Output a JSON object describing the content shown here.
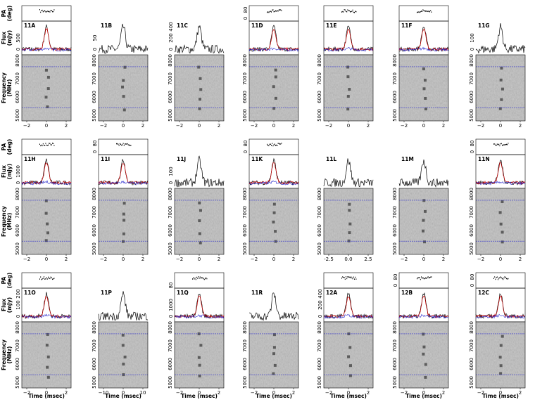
{
  "figure": {
    "axis_labels": {
      "pa": [
        "PA",
        "(deg)"
      ],
      "flux": [
        "Flux",
        "(mJy)"
      ],
      "freq": [
        "Frequency",
        "(MHz)"
      ]
    },
    "x_label": "Time (msec)",
    "freq_ticks": [
      "5000",
      "6000",
      "7000",
      "8000"
    ],
    "time_ticks": [
      "−2",
      "0",
      "2"
    ],
    "panels": [
      {
        "label": "11A",
        "has_pa": true,
        "pol": true,
        "flux_ticks": [
          "0",
          "500"
        ],
        "pa_ticks": []
      },
      {
        "label": "11B",
        "has_pa": false,
        "pol": false,
        "flux_ticks": [
          "0",
          "50"
        ],
        "pa_ticks": []
      },
      {
        "label": "11C",
        "has_pa": false,
        "pol": false,
        "flux_ticks": [
          "0",
          "200",
          "400"
        ],
        "pa_ticks": []
      },
      {
        "label": "11D",
        "has_pa": true,
        "pol": true,
        "flux_ticks": [],
        "pa_ticks": [
          "0",
          "80"
        ]
      },
      {
        "label": "11E",
        "has_pa": true,
        "pol": true,
        "flux_ticks": [],
        "pa_ticks": []
      },
      {
        "label": "11F",
        "has_pa": true,
        "pol": true,
        "flux_ticks": [],
        "pa_ticks": []
      },
      {
        "label": "11G",
        "has_pa": false,
        "pol": false,
        "flux_ticks": [
          "0",
          "100"
        ],
        "pa_ticks": []
      },
      {
        "label": "11H",
        "has_pa": true,
        "pol": true,
        "flux_ticks": [
          "0",
          "1000"
        ],
        "pa_ticks": []
      },
      {
        "label": "11I",
        "has_pa": true,
        "pol": true,
        "flux_ticks": [],
        "pa_ticks": [
          "0",
          "80"
        ]
      },
      {
        "label": "11J",
        "has_pa": false,
        "pol": false,
        "flux_ticks": [
          "0",
          "100"
        ],
        "pa_ticks": []
      },
      {
        "label": "11K",
        "has_pa": true,
        "pol": true,
        "flux_ticks": [],
        "pa_ticks": [
          "0",
          "80"
        ]
      },
      {
        "label": "11L",
        "has_pa": false,
        "pol": false,
        "flux_ticks": [],
        "pa_ticks": [],
        "time_ticks": [
          "-2.5",
          "0.0",
          "2.5"
        ]
      },
      {
        "label": "11M",
        "has_pa": false,
        "pol": false,
        "flux_ticks": [],
        "pa_ticks": []
      },
      {
        "label": "11N",
        "has_pa": true,
        "pol": true,
        "flux_ticks": [],
        "pa_ticks": [
          "0",
          "80"
        ]
      },
      {
        "label": "11O",
        "has_pa": true,
        "pol": true,
        "flux_ticks": [
          "0",
          "100",
          "200"
        ],
        "pa_ticks": []
      },
      {
        "label": "11P",
        "has_pa": false,
        "pol": false,
        "flux_ticks": [],
        "pa_ticks": [],
        "time_ticks": [
          "−10",
          "0",
          "10"
        ]
      },
      {
        "label": "11Q",
        "has_pa": true,
        "pol": true,
        "flux_ticks": [
          "0",
          "1000"
        ],
        "pa_ticks": [
          "80"
        ]
      },
      {
        "label": "11R",
        "has_pa": false,
        "pol": false,
        "flux_ticks": [],
        "pa_ticks": []
      },
      {
        "label": "12A",
        "has_pa": true,
        "pol": true,
        "flux_ticks": [
          "0",
          "200",
          "400"
        ],
        "pa_ticks": []
      },
      {
        "label": "12B",
        "has_pa": true,
        "pol": true,
        "flux_ticks": [],
        "pa_ticks": [
          "0",
          "80"
        ]
      },
      {
        "label": "12C",
        "has_pa": true,
        "pol": true,
        "flux_ticks": [],
        "pa_ticks": [
          "0",
          "80"
        ]
      }
    ]
  }
}
